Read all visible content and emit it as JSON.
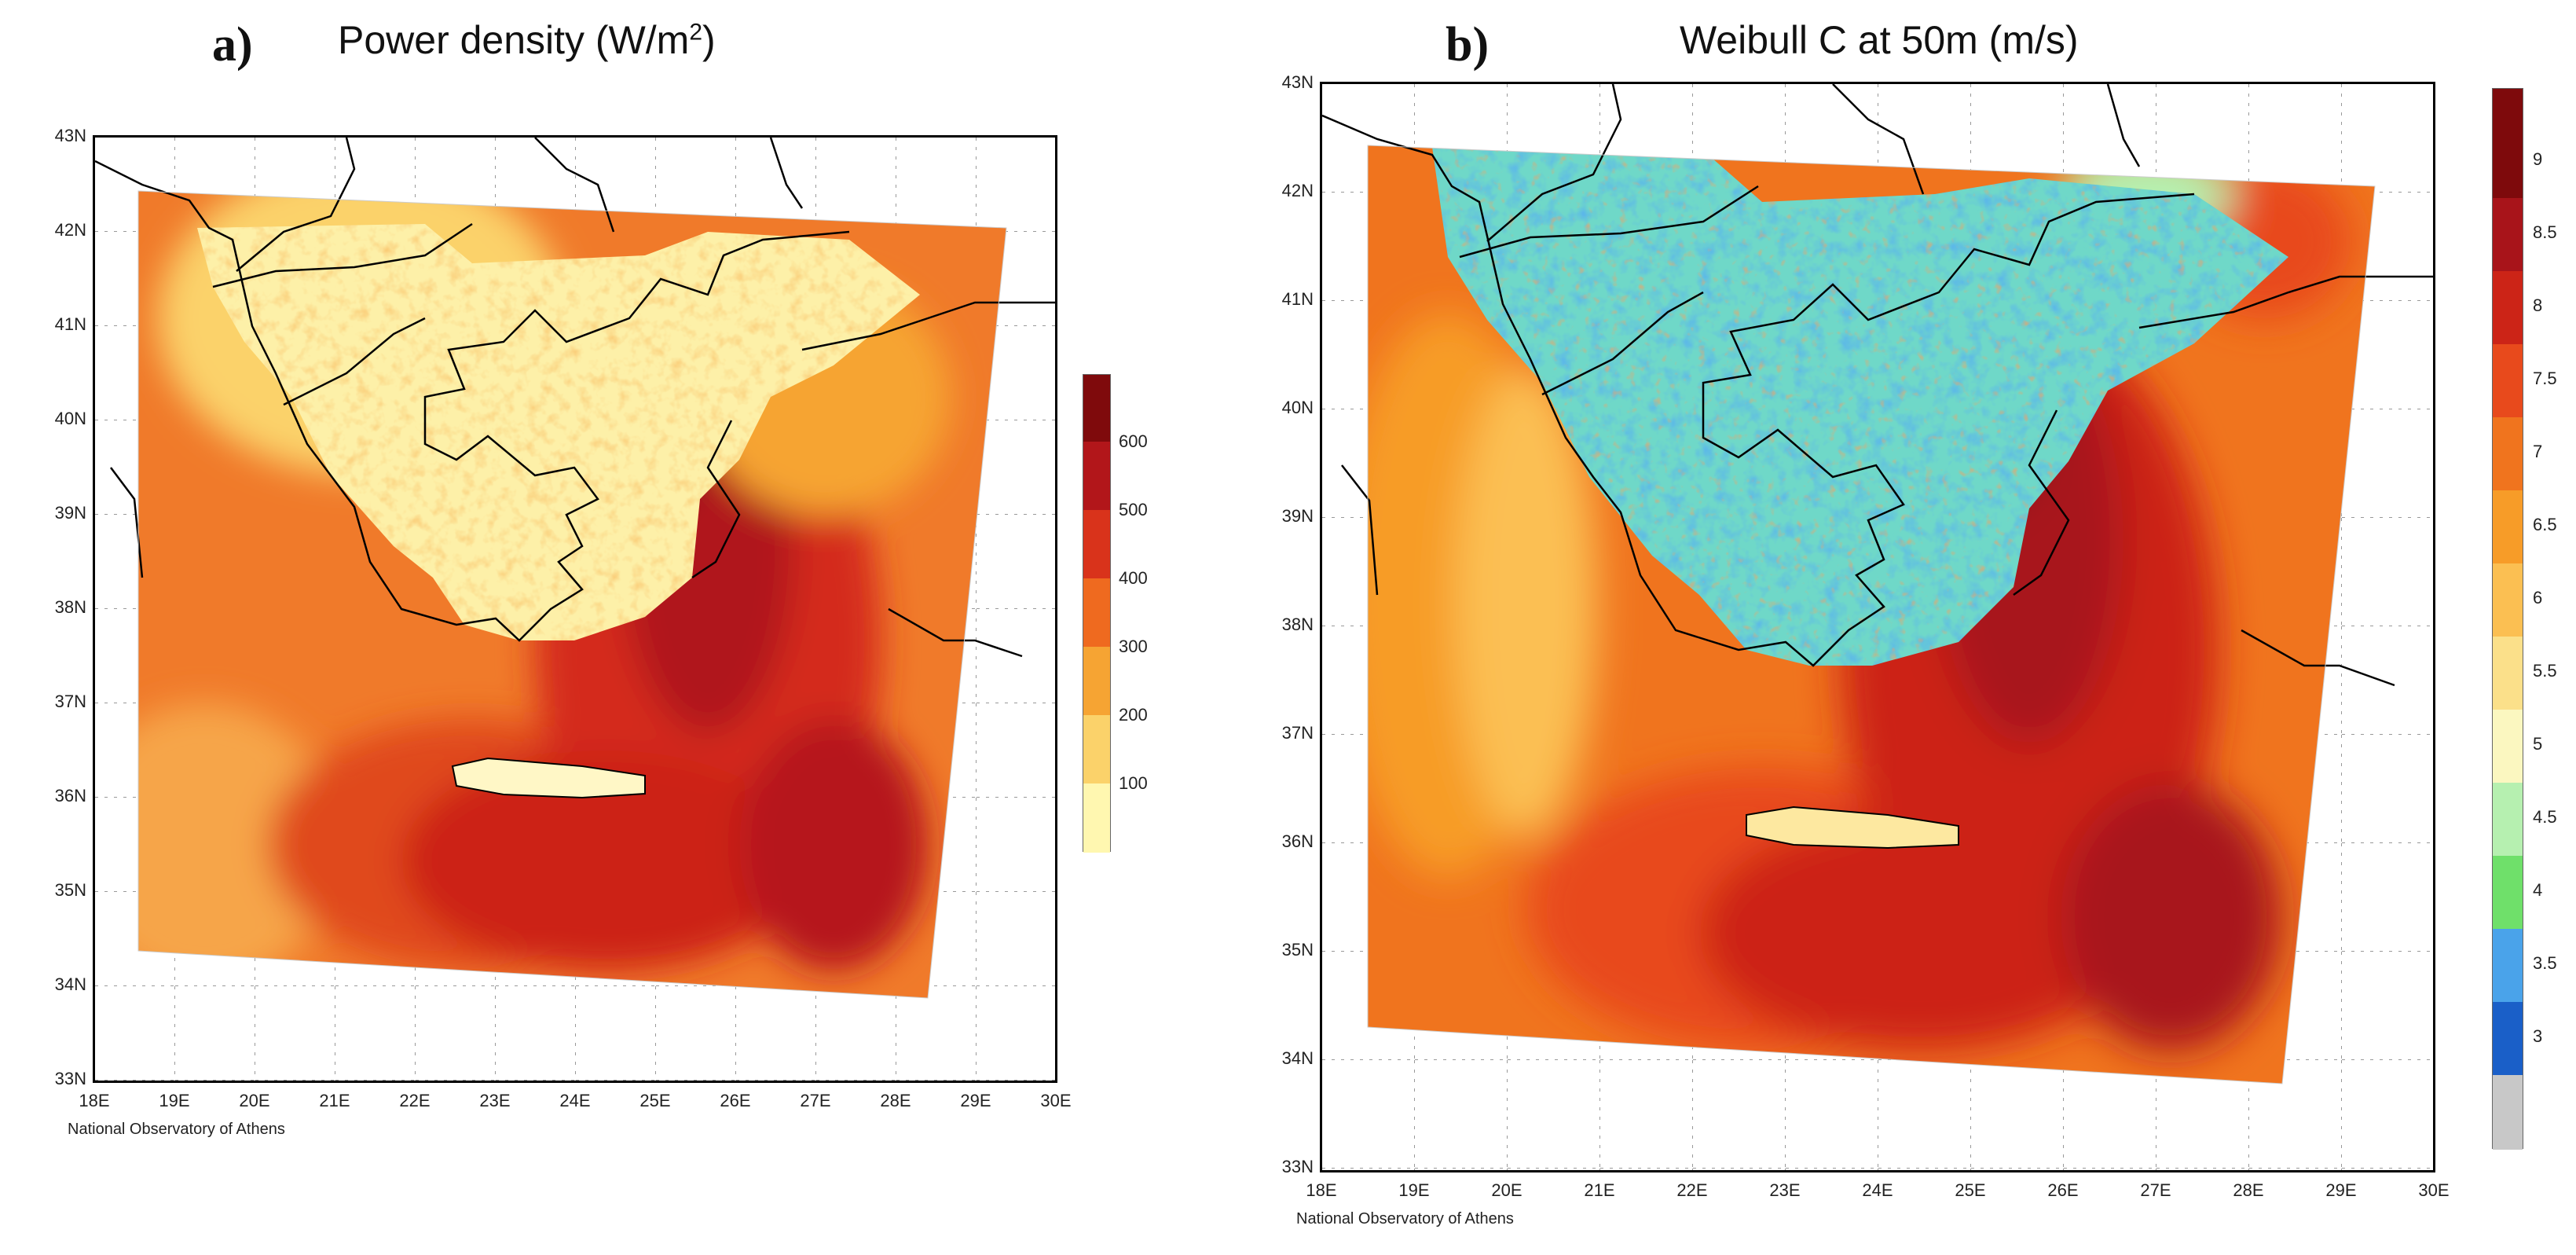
{
  "panels": [
    {
      "letter": "a)",
      "title_main": "Power density (W/m",
      "title_sup": "2",
      "title_end": ")",
      "credit": "National Observatory of Athens",
      "x_ticks": [
        "18E",
        "19E",
        "20E",
        "21E",
        "22E",
        "23E",
        "24E",
        "25E",
        "26E",
        "27E",
        "28E",
        "29E",
        "30E"
      ],
      "y_ticks": [
        "43N",
        "42N",
        "41N",
        "40N",
        "39N",
        "38N",
        "37N",
        "36N",
        "35N",
        "34N",
        "33N"
      ],
      "colorbar": {
        "labels": [
          "600",
          "500",
          "400",
          "300",
          "200",
          "100"
        ],
        "colors": [
          "#fff7b0",
          "#fbd26a",
          "#f6a433",
          "#ef6a1f",
          "#d9331b",
          "#b2161a",
          "#7f0a0c"
        ]
      }
    },
    {
      "letter": "b)",
      "title_main": "Weibull C at 50m (m/s)",
      "title_sup": "",
      "title_end": "",
      "credit": "National Observatory of Athens",
      "x_ticks": [
        "18E",
        "19E",
        "20E",
        "21E",
        "22E",
        "23E",
        "24E",
        "25E",
        "26E",
        "27E",
        "28E",
        "29E",
        "30E"
      ],
      "y_ticks": [
        "43N",
        "42N",
        "41N",
        "40N",
        "39N",
        "38N",
        "37N",
        "36N",
        "35N",
        "34N",
        "33N"
      ],
      "colorbar": {
        "labels": [
          "9",
          "8.5",
          "8",
          "7.5",
          "7",
          "6.5",
          "6",
          "5.5",
          "5",
          "4.5",
          "4",
          "3.5",
          "3"
        ],
        "colors": [
          "#c8c8c8",
          "#1a5fc8",
          "#4aa3ea",
          "#6fe06a",
          "#b6f0b0",
          "#fbf7c0",
          "#fbe08a",
          "#fbbf52",
          "#f79c28",
          "#f0741e",
          "#e84a1c",
          "#cc2417",
          "#a8141a",
          "#7e0a0c"
        ]
      }
    }
  ]
}
